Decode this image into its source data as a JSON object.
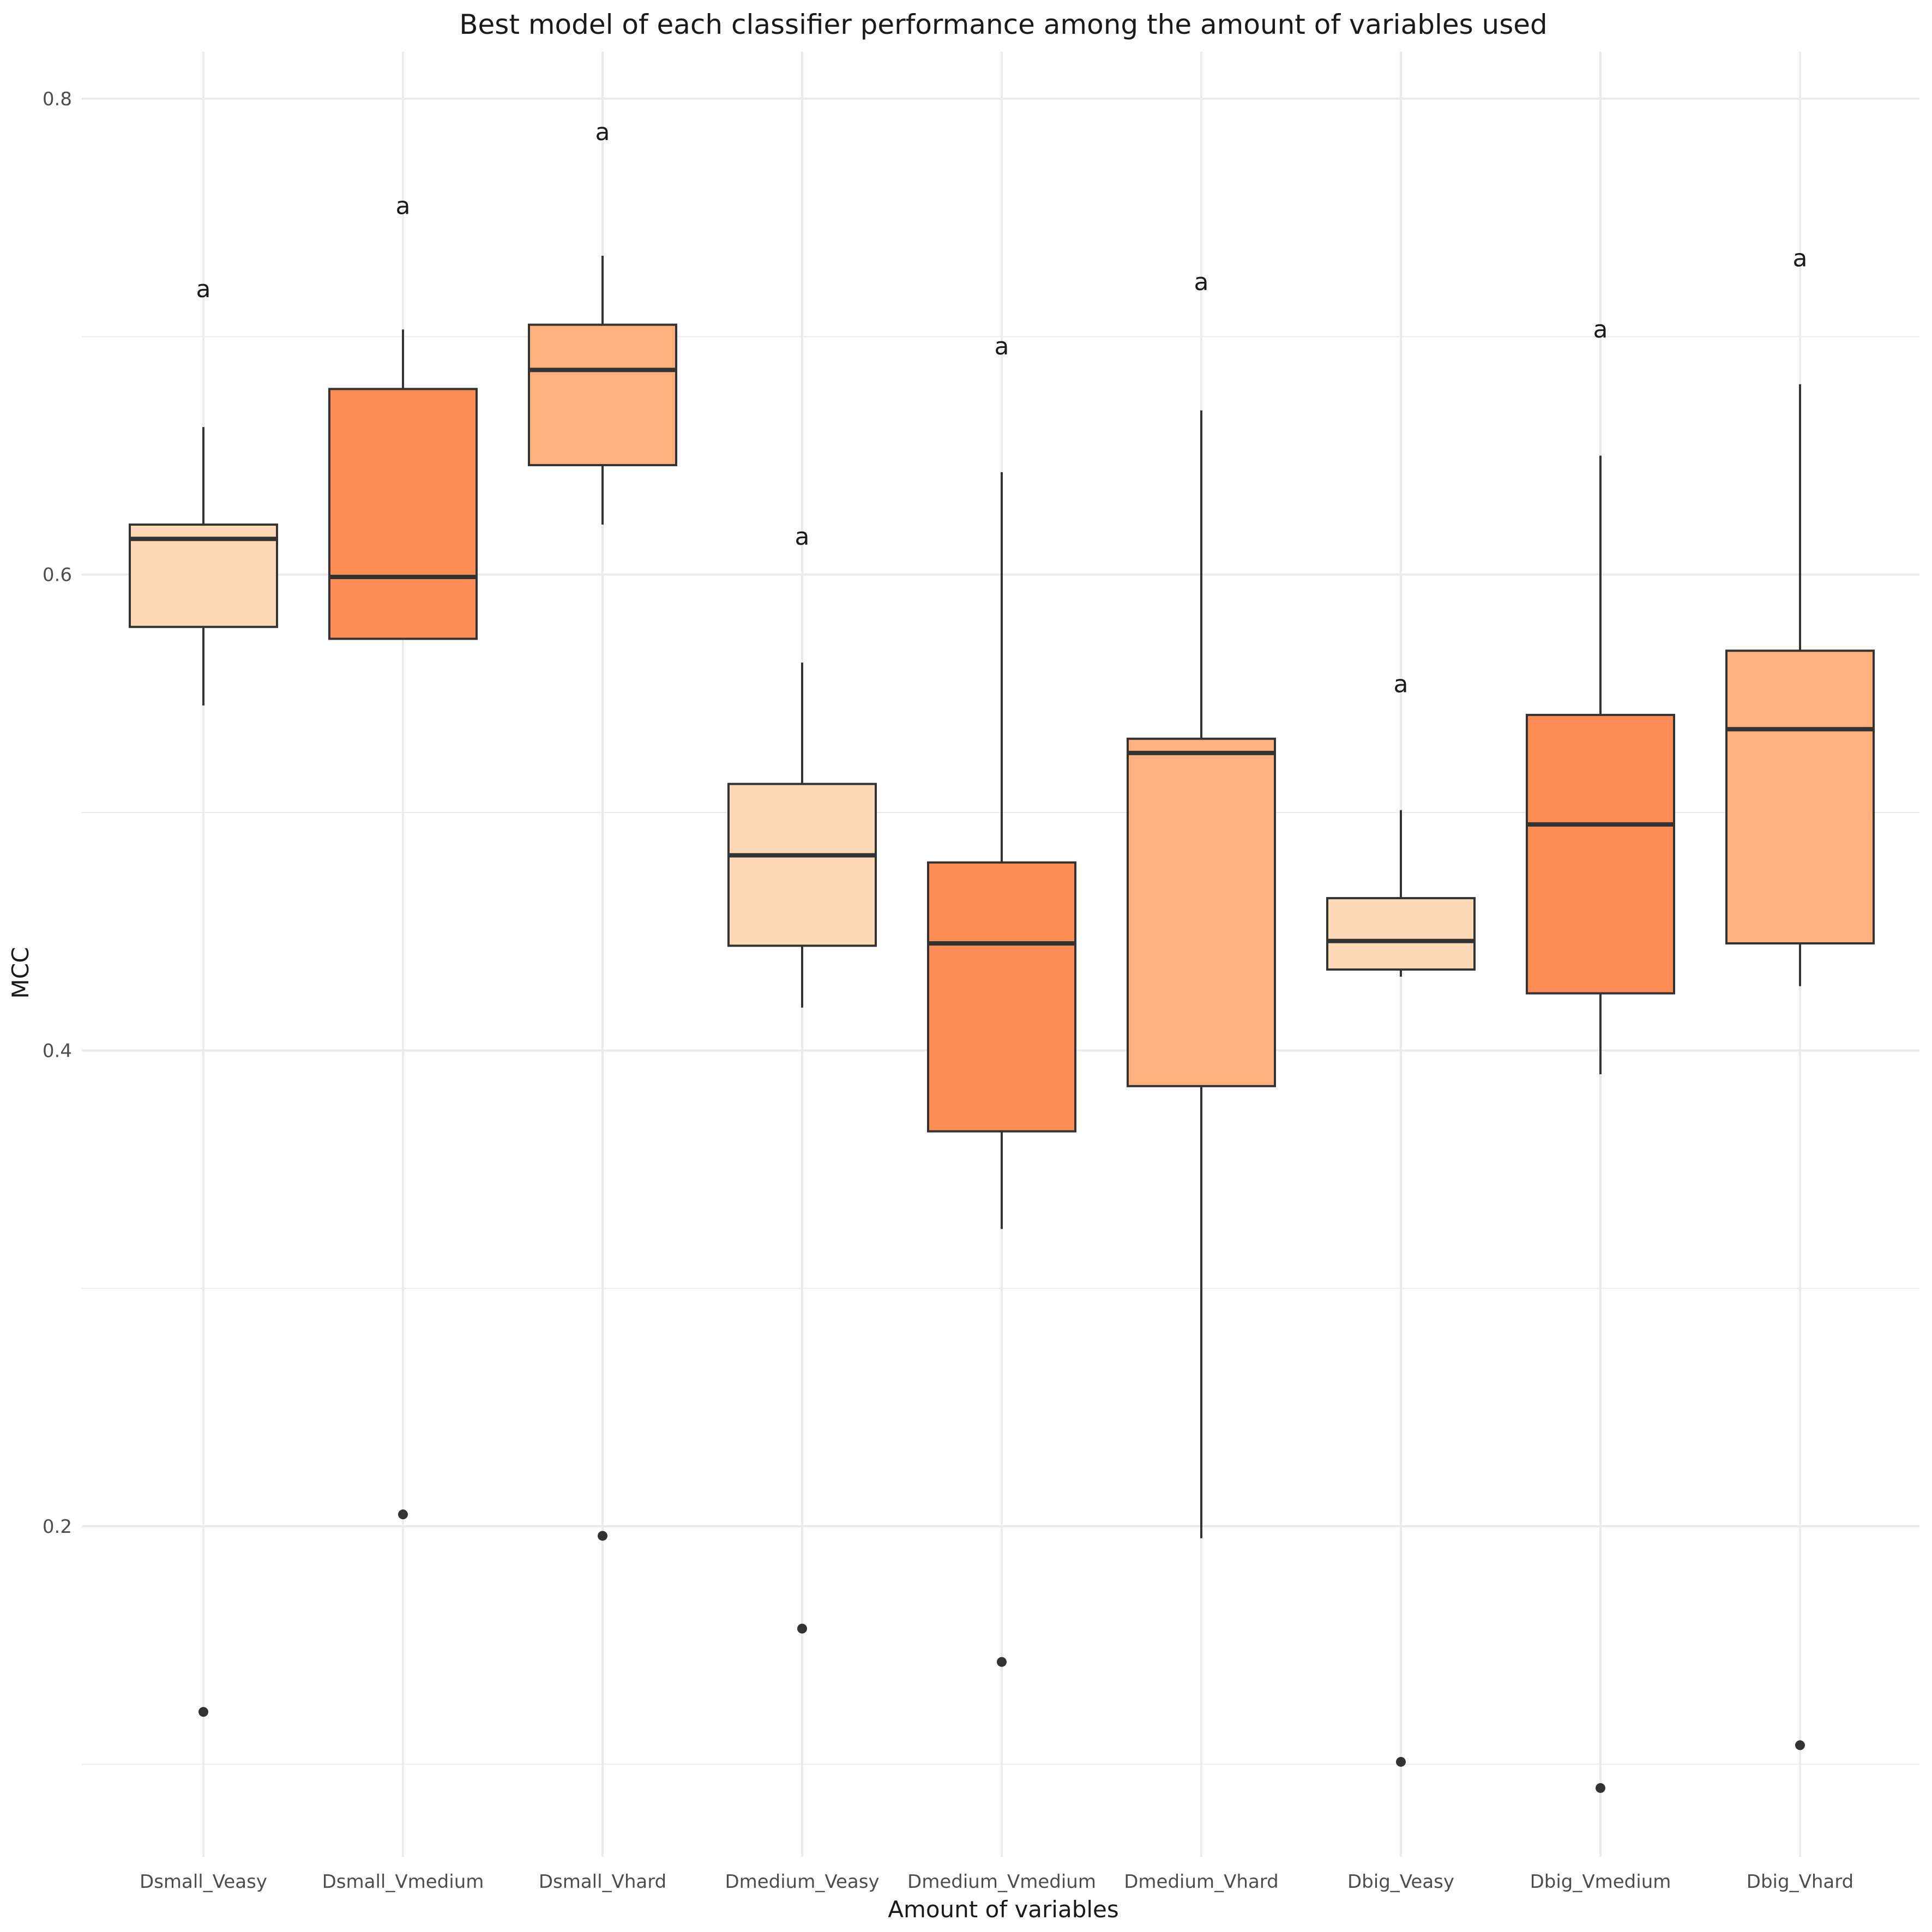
{
  "chart_data": {
    "type": "boxplot",
    "title": "Best model of each classifier performance among the amount of variables used",
    "xlabel": "Amount of variables",
    "ylabel": "MCC",
    "ylim": [
      0.06,
      0.82
    ],
    "y_ticks": [
      0.2,
      0.4,
      0.6,
      0.8
    ],
    "y_tick_labels": [
      "0.2",
      "0.4",
      "0.6",
      "0.8"
    ],
    "y_minor_ticks": [
      0.1,
      0.3,
      0.5,
      0.7
    ],
    "grid": true,
    "legend": "none",
    "categories": [
      "Dsmall_Veasy",
      "Dsmall_Vmedium",
      "Dsmall_Vhard",
      "Dmedium_Veasy",
      "Dmedium_Vmedium",
      "Dmedium_Vhard",
      "Dbig_Veasy",
      "Dbig_Vmedium",
      "Dbig_Vhard"
    ],
    "boxes": [
      {
        "category": "Dsmall_Veasy",
        "whisker_low": 0.545,
        "q1": 0.578,
        "median": 0.615,
        "q3": 0.621,
        "whisker_high": 0.662,
        "outliers": [
          0.122
        ],
        "letter": "a",
        "letter_y": 0.72,
        "color": "#fdd9b8"
      },
      {
        "category": "Dsmall_Vmedium",
        "whisker_low": 0.573,
        "q1": 0.573,
        "median": 0.599,
        "q3": 0.678,
        "whisker_high": 0.703,
        "outliers": [
          0.205
        ],
        "letter": "a",
        "letter_y": 0.755,
        "color": "#ff8c55"
      },
      {
        "category": "Dsmall_Vhard",
        "whisker_low": 0.621,
        "q1": 0.646,
        "median": 0.686,
        "q3": 0.705,
        "whisker_high": 0.734,
        "outliers": [
          0.196
        ],
        "letter": "a",
        "letter_y": 0.786,
        "color": "#ffb07c"
      },
      {
        "category": "Dmedium_Veasy",
        "whisker_low": 0.418,
        "q1": 0.444,
        "median": 0.482,
        "q3": 0.512,
        "whisker_high": 0.563,
        "outliers": [
          0.157
        ],
        "letter": "a",
        "letter_y": 0.616,
        "color": "#fdd9b8"
      },
      {
        "category": "Dmedium_Vmedium",
        "whisker_low": 0.325,
        "q1": 0.366,
        "median": 0.445,
        "q3": 0.479,
        "whisker_high": 0.643,
        "outliers": [
          0.143
        ],
        "letter": "a",
        "letter_y": 0.696,
        "color": "#ff8c55"
      },
      {
        "category": "Dmedium_Vhard",
        "whisker_low": 0.195,
        "q1": 0.385,
        "median": 0.525,
        "q3": 0.531,
        "whisker_high": 0.669,
        "outliers": [],
        "letter": "a",
        "letter_y": 0.723,
        "color": "#ffb07c"
      },
      {
        "category": "Dbig_Veasy",
        "whisker_low": 0.431,
        "q1": 0.434,
        "median": 0.446,
        "q3": 0.464,
        "whisker_high": 0.501,
        "outliers": [
          0.101
        ],
        "letter": "a",
        "letter_y": 0.554,
        "color": "#fdd9b8"
      },
      {
        "category": "Dbig_Vmedium",
        "whisker_low": 0.39,
        "q1": 0.424,
        "median": 0.495,
        "q3": 0.541,
        "whisker_high": 0.65,
        "outliers": [
          0.09
        ],
        "letter": "a",
        "letter_y": 0.703,
        "color": "#ff8c55"
      },
      {
        "category": "Dbig_Vhard",
        "whisker_low": 0.427,
        "q1": 0.445,
        "median": 0.535,
        "q3": 0.568,
        "whisker_high": 0.68,
        "outliers": [
          0.108
        ],
        "letter": "a",
        "letter_y": 0.733,
        "color": "#ffb07c"
      }
    ],
    "colors": {
      "grid": "#ebebeb",
      "box_stroke": "#333333",
      "point": "#333333"
    }
  }
}
